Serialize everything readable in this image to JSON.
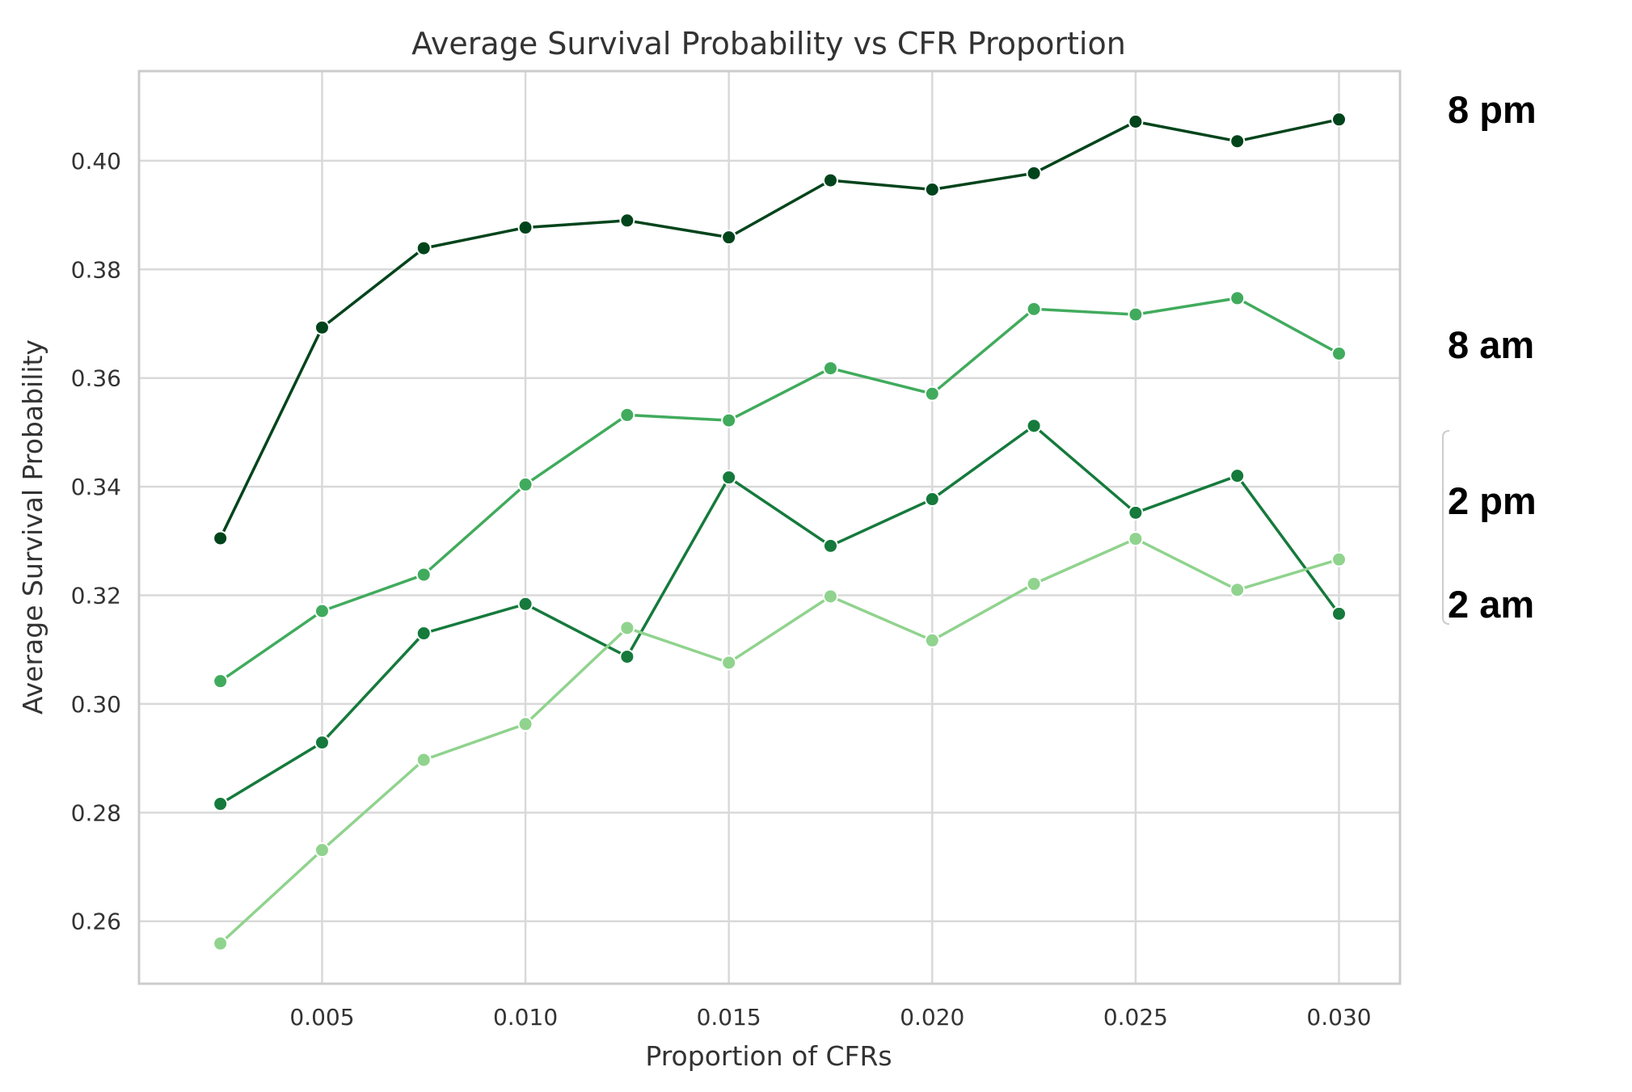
{
  "chart_data": {
    "type": "line",
    "title": "Average Survival Probability vs CFR Proportion",
    "xlabel": "Proportion of CFRs",
    "ylabel": "Average Survival Probability",
    "xlim": [
      0.0005,
      0.0315
    ],
    "ylim": [
      0.2485,
      0.4165
    ],
    "xticks": [
      "0.005",
      "0.010",
      "0.015",
      "0.020",
      "0.025",
      "0.030"
    ],
    "yticks": [
      "0.26",
      "0.28",
      "0.30",
      "0.32",
      "0.34",
      "0.36",
      "0.38",
      "0.40"
    ],
    "grid": true,
    "x": [
      0.0025,
      0.005,
      0.0075,
      0.01,
      0.0125,
      0.015,
      0.0175,
      0.02,
      0.0225,
      0.025,
      0.0275,
      0.03
    ],
    "series": [
      {
        "name": "8 pm",
        "color": "#00441b",
        "values": [
          0.3305,
          0.3693,
          0.3839,
          0.3877,
          0.389,
          0.3859,
          0.3964,
          0.3947,
          0.3977,
          0.4072,
          0.4036,
          0.4076
        ]
      },
      {
        "name": "8 am",
        "color": "#41ab5d",
        "values": [
          0.3042,
          0.3171,
          0.3238,
          0.3404,
          0.3532,
          0.3522,
          0.3618,
          0.3571,
          0.3727,
          0.3717,
          0.3747,
          0.3645
        ]
      },
      {
        "name": "2 pm",
        "color": "#157a3c",
        "values": [
          0.2816,
          0.2929,
          0.313,
          0.3184,
          0.3087,
          0.3417,
          0.3291,
          0.3377,
          0.3512,
          0.3352,
          0.342,
          0.3166
        ]
      },
      {
        "name": "2 am",
        "color": "#90d38e",
        "values": [
          0.2559,
          0.2731,
          0.2897,
          0.2963,
          0.314,
          0.3076,
          0.3198,
          0.3117,
          0.3221,
          0.3304,
          0.321,
          0.3266
        ]
      }
    ]
  }
}
